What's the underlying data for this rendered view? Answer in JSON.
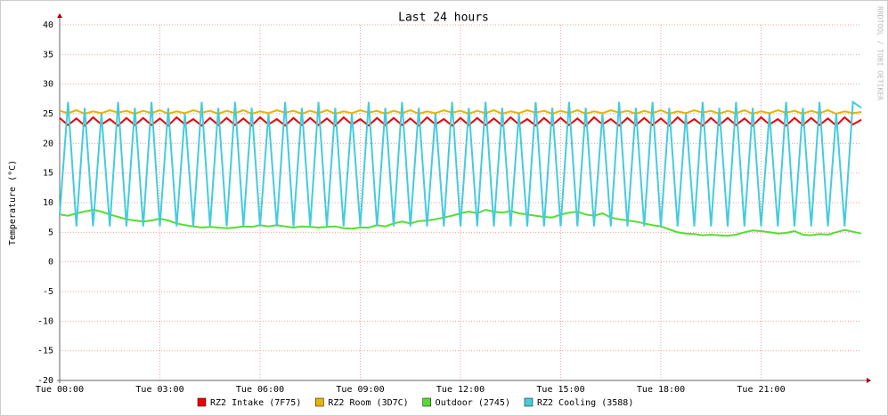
{
  "chart_data": {
    "type": "line",
    "title": "Last 24 hours",
    "y_label": "Temperature (°C)",
    "watermark": "RRDTOOL / TOBI OETIKER",
    "x": [
      0,
      0.25,
      0.5,
      0.75,
      1,
      1.25,
      1.5,
      1.75,
      2,
      2.25,
      2.5,
      2.75,
      3,
      3.25,
      3.5,
      3.75,
      4,
      4.25,
      4.5,
      4.75,
      5,
      5.25,
      5.5,
      5.75,
      6,
      6.25,
      6.5,
      6.75,
      7,
      7.25,
      7.5,
      7.75,
      8,
      8.25,
      8.5,
      8.75,
      9,
      9.25,
      9.5,
      9.75,
      10,
      10.25,
      10.5,
      10.75,
      11,
      11.25,
      11.5,
      11.75,
      12,
      12.25,
      12.5,
      12.75,
      13,
      13.25,
      13.5,
      13.75,
      14,
      14.25,
      14.5,
      14.75,
      15,
      15.25,
      15.5,
      15.75,
      16,
      16.25,
      16.5,
      16.75,
      17,
      17.25,
      17.5,
      17.75,
      18,
      18.25,
      18.5,
      18.75,
      19,
      19.25,
      19.5,
      19.75,
      20,
      20.25,
      20.5,
      20.75,
      21,
      21.25,
      21.5,
      21.75,
      22,
      22.25,
      22.5,
      22.75,
      23,
      23.25,
      23.5,
      23.75,
      24
    ],
    "xlim": [
      0,
      24
    ],
    "xticks": [
      {
        "value": 0,
        "label": "Tue 00:00"
      },
      {
        "value": 3,
        "label": "Tue 03:00"
      },
      {
        "value": 6,
        "label": "Tue 06:00"
      },
      {
        "value": 9,
        "label": "Tue 09:00"
      },
      {
        "value": 12,
        "label": "Tue 12:00"
      },
      {
        "value": 15,
        "label": "Tue 15:00"
      },
      {
        "value": 18,
        "label": "Tue 18:00"
      },
      {
        "value": 21,
        "label": "Tue 21:00"
      }
    ],
    "ylim": [
      -20,
      40
    ],
    "yticks": [
      -20,
      -15,
      -10,
      -5,
      0,
      5,
      10,
      15,
      20,
      25,
      30,
      35,
      40
    ],
    "grid": true,
    "series": [
      {
        "name": "RZ2 Intake (7F75)",
        "color": "#ee0000",
        "values": [
          24.3,
          23.1,
          24.2,
          23,
          24.4,
          23.2,
          24.1,
          23,
          24.3,
          23.1,
          24.3,
          23.1,
          24.2,
          23,
          24.4,
          23.2,
          24.1,
          23,
          24.3,
          23.1,
          24.3,
          23.1,
          24.2,
          23,
          24.4,
          23.2,
          24.1,
          23,
          24.3,
          23.1,
          24.3,
          23.1,
          24.2,
          23,
          24.4,
          23.2,
          24.1,
          23,
          24.3,
          23.1,
          24.3,
          23.1,
          24.2,
          23,
          24.4,
          23.2,
          24.1,
          23,
          24.3,
          23.1,
          24.3,
          23.1,
          24.2,
          23,
          24.4,
          23.2,
          24.1,
          23,
          24.3,
          23.1,
          24.3,
          23.1,
          24.2,
          23,
          24.4,
          23.2,
          24.1,
          23,
          24.3,
          23.1,
          24.3,
          23.1,
          24.2,
          23,
          24.4,
          23.2,
          24.1,
          23,
          24.3,
          23.1,
          24.3,
          23.1,
          24.2,
          23,
          24.4,
          23.2,
          24.1,
          23,
          24.3,
          23.1,
          24.3,
          23.1,
          24.2,
          23,
          24.4,
          23.2,
          24
        ]
      },
      {
        "name": "RZ2 Room (3D7C)",
        "color": "#e8b400",
        "values": [
          25.5,
          25.1,
          25.6,
          25,
          25.4,
          25.1,
          25.6,
          25.2,
          25.5,
          25,
          25.5,
          25.1,
          25.6,
          25,
          25.4,
          25.1,
          25.6,
          25.2,
          25.5,
          25,
          25.5,
          25.1,
          25.6,
          25,
          25.4,
          25.1,
          25.6,
          25.2,
          25.5,
          25,
          25.5,
          25.1,
          25.6,
          25,
          25.4,
          25.1,
          25.6,
          25.2,
          25.5,
          25,
          25.5,
          25.1,
          25.6,
          25,
          25.4,
          25.1,
          25.6,
          25.2,
          25.5,
          25,
          25.5,
          25.1,
          25.6,
          25,
          25.4,
          25.1,
          25.6,
          25.2,
          25.5,
          25,
          25.5,
          25.1,
          25.6,
          25,
          25.4,
          25.1,
          25.6,
          25.2,
          25.5,
          25,
          25.5,
          25.1,
          25.6,
          25,
          25.4,
          25.1,
          25.6,
          25.2,
          25.5,
          25,
          25.5,
          25.1,
          25.6,
          25,
          25.4,
          25.1,
          25.6,
          25.2,
          25.5,
          25,
          25.5,
          25.1,
          25.6,
          25,
          25.4,
          25.1,
          25.3
        ]
      },
      {
        "name": "Outdoor (2745)",
        "color": "#55dd33",
        "values": [
          8,
          7.8,
          8.2,
          8.5,
          8.8,
          8.5,
          8,
          7.6,
          7.2,
          7,
          6.8,
          7,
          7.3,
          7,
          6.5,
          6.2,
          6,
          5.8,
          5.9,
          5.8,
          5.7,
          5.8,
          6,
          5.9,
          6.2,
          6,
          6.2,
          6,
          5.8,
          6,
          5.9,
          5.8,
          5.9,
          6,
          5.7,
          5.6,
          5.8,
          5.8,
          6.2,
          6,
          6.5,
          6.8,
          6.5,
          6.9,
          7,
          7.2,
          7.5,
          7.8,
          8.2,
          8.5,
          8.2,
          8.8,
          8.5,
          8.3,
          8.6,
          8.2,
          8,
          7.8,
          7.6,
          7.5,
          8,
          8.3,
          8.5,
          8,
          7.8,
          8.2,
          7.5,
          7.2,
          7,
          6.8,
          6.5,
          6.2,
          6,
          5.5,
          5,
          4.8,
          4.7,
          4.5,
          4.6,
          4.5,
          4.4,
          4.6,
          5,
          5.3,
          5.2,
          5,
          4.8,
          4.9,
          5.2,
          4.6,
          4.5,
          4.7,
          4.6,
          5,
          5.4,
          5.1,
          4.8
        ]
      },
      {
        "name": "RZ2 Cooling (3588)",
        "color": "#44ccdd",
        "values": [
          8,
          27,
          6,
          26,
          6,
          25,
          6,
          27,
          6,
          26,
          6,
          27,
          6,
          26,
          6,
          25,
          6,
          27,
          6,
          26,
          6,
          27,
          6,
          26,
          6,
          25,
          6,
          27,
          6,
          26,
          6,
          27,
          6,
          26,
          6,
          25,
          6,
          27,
          6,
          26,
          6,
          27,
          6,
          26,
          6,
          25,
          6,
          27,
          6,
          26,
          6,
          27,
          6,
          26,
          6,
          25,
          6,
          27,
          6,
          26,
          6,
          27,
          6,
          26,
          6,
          25,
          6,
          27,
          6,
          26,
          6,
          27,
          6,
          26,
          6,
          25,
          6,
          27,
          6,
          26,
          6,
          27,
          6,
          26,
          6,
          25,
          6,
          27,
          6,
          26,
          6,
          27,
          6,
          25,
          6,
          27,
          26
        ]
      }
    ]
  }
}
